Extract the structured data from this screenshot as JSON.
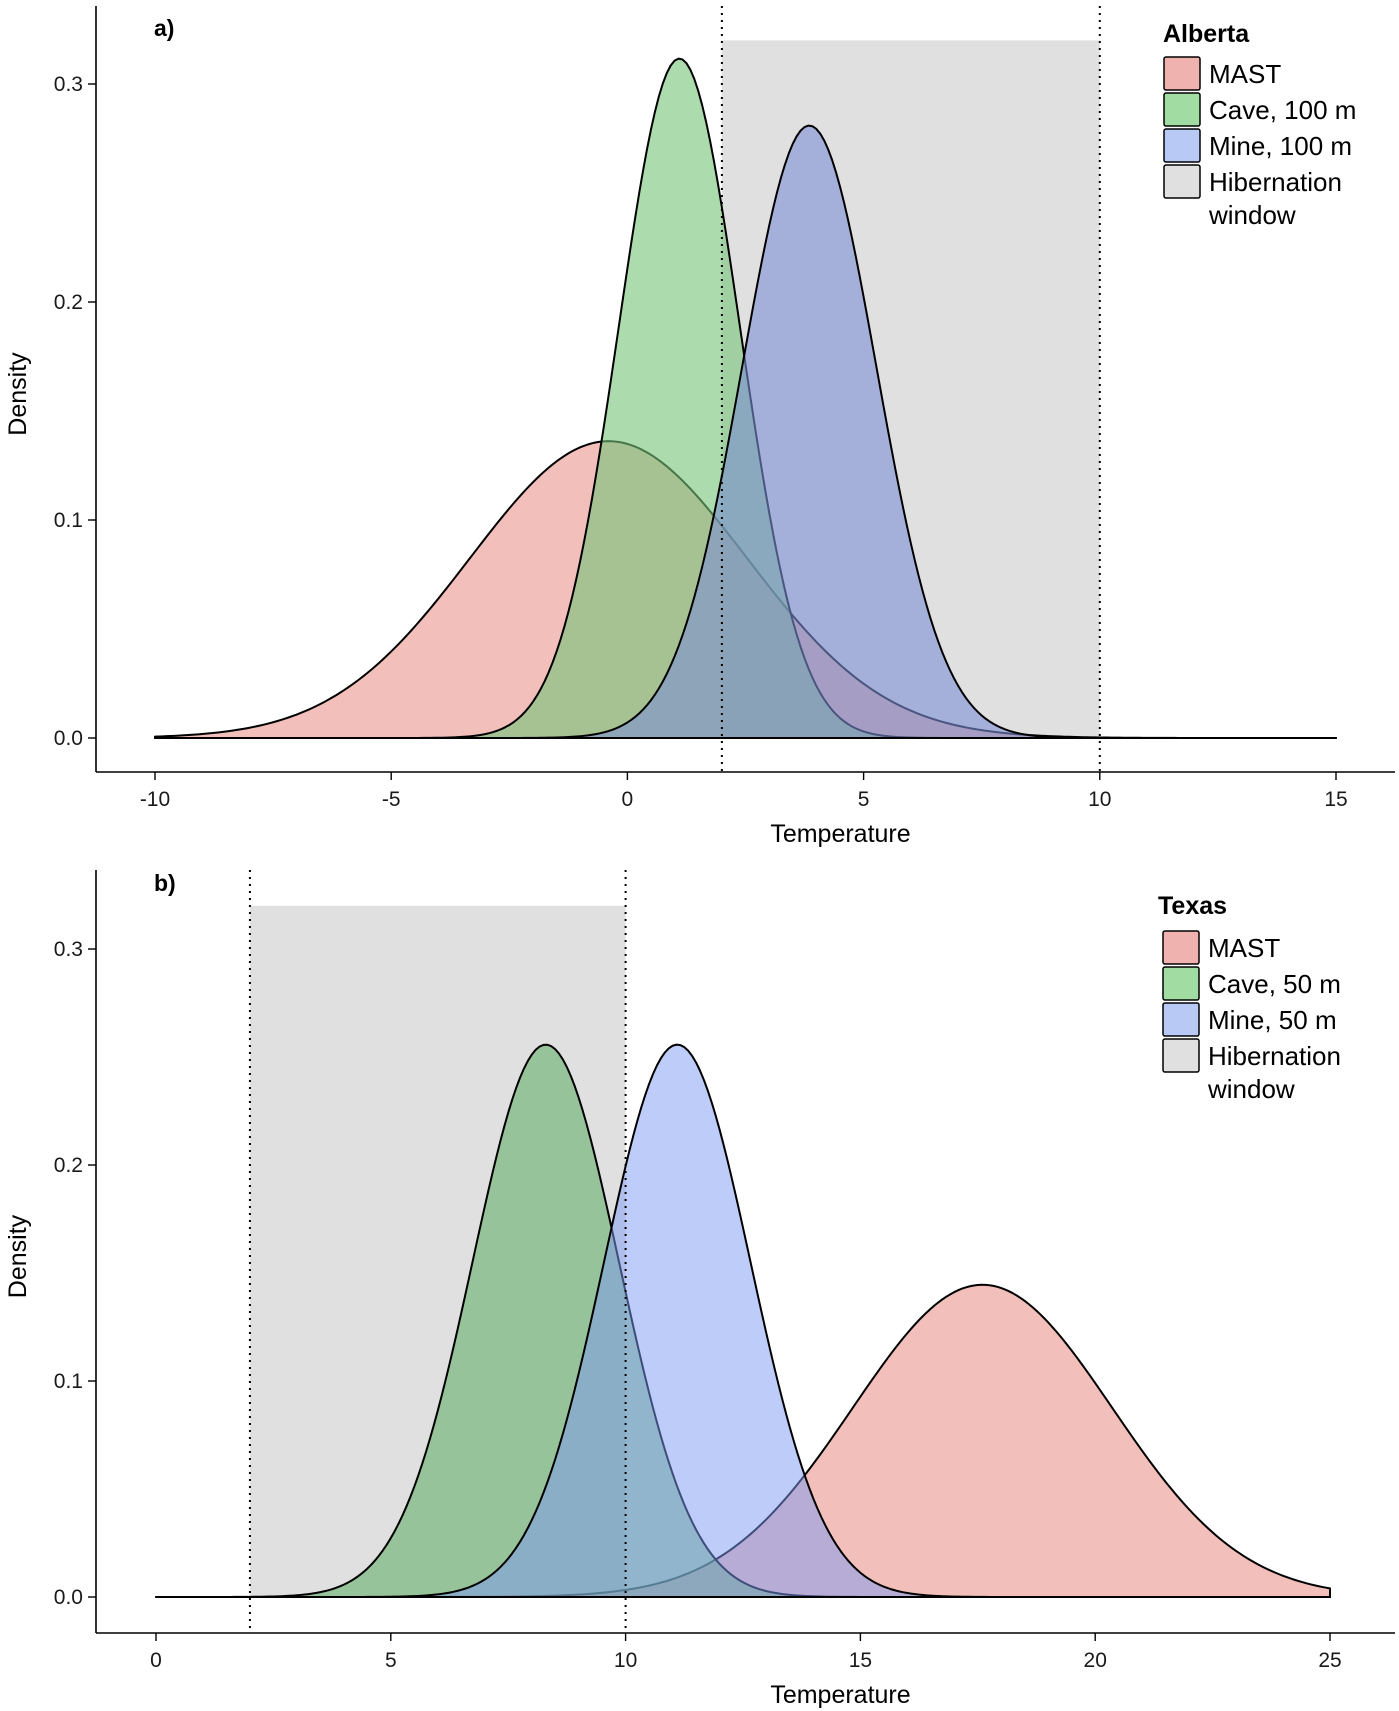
{
  "chart_data": [
    {
      "type": "area",
      "panel_label": "a)",
      "xlabel": "Temperature",
      "ylabel": "Density",
      "xlim": [
        -10,
        15
      ],
      "ylim": [
        0,
        0.32
      ],
      "x_ticks": [
        -10,
        -5,
        0,
        5,
        10,
        15
      ],
      "x_tick_labels": [
        "-10",
        "-5",
        "0",
        "5",
        "10",
        "15"
      ],
      "y_ticks": [
        0.0,
        0.1,
        0.2,
        0.3
      ],
      "y_tick_labels": [
        "0.0",
        "0.1",
        "0.2",
        "0.3"
      ],
      "legend": {
        "title": "Alberta",
        "placement": "top-right",
        "entries": [
          {
            "label": "MAST",
            "color": "#f0b2ae"
          },
          {
            "label": "Cave, 100 m",
            "color": "#a1dca3"
          },
          {
            "label": "Mine, 100 m",
            "color": "#b8c9f6"
          },
          {
            "label": "Hibernation",
            "label_line2": "window",
            "color": "#e0e0e0"
          }
        ]
      },
      "hibernation_window": {
        "xmin": 2,
        "xmax": 10,
        "ymax": 0.32
      },
      "vertical_lines": [
        2,
        10
      ],
      "x_range": [
        -10,
        15
      ],
      "series": [
        {
          "name": "MAST",
          "mean": -0.4,
          "sd": 2.93,
          "color": "#e88a84",
          "opacity": 0.55
        },
        {
          "name": "Cave, 100 m",
          "mean": 1.1,
          "sd": 1.28,
          "color": "#74c476",
          "opacity": 0.6
        },
        {
          "name": "Mine, 100 m",
          "mean": 3.85,
          "sd": 1.42,
          "color": "#7b8fd4",
          "opacity": 0.6
        }
      ]
    },
    {
      "type": "area",
      "panel_label": "b)",
      "xlabel": "Temperature",
      "ylabel": "Density",
      "xlim": [
        0,
        25
      ],
      "ylim": [
        0,
        0.32
      ],
      "x_ticks": [
        0,
        5,
        10,
        15,
        20,
        25
      ],
      "x_tick_labels": [
        "0",
        "5",
        "10",
        "15",
        "20",
        "25"
      ],
      "y_ticks": [
        0.0,
        0.1,
        0.2,
        0.3
      ],
      "y_tick_labels": [
        "0.0",
        "0.1",
        "0.2",
        "0.3"
      ],
      "legend": {
        "title": "Texas",
        "placement": "top-right",
        "entries": [
          {
            "label": "MAST",
            "color": "#f0b2ae"
          },
          {
            "label": "Cave, 50 m",
            "color": "#a1dca3"
          },
          {
            "label": "Mine, 50 m",
            "color": "#b8c9f6"
          },
          {
            "label": "Hibernation",
            "label_line2": "window",
            "color": "#e0e0e0"
          }
        ]
      },
      "hibernation_window": {
        "xmin": 2,
        "xmax": 10,
        "ymax": 0.32
      },
      "vertical_lines": [
        2,
        10
      ],
      "x_range": [
        0,
        25
      ],
      "series": [
        {
          "name": "MAST",
          "mean": 17.6,
          "sd": 2.76,
          "color": "#e88a84",
          "opacity": 0.55
        },
        {
          "name": "Cave, 50 m",
          "mean": 8.3,
          "sd": 1.56,
          "color": "#5aac5e",
          "opacity": 0.55
        },
        {
          "name": "Mine, 50 m",
          "mean": 11.1,
          "sd": 1.56,
          "color": "#7b9af2",
          "opacity": 0.5
        }
      ]
    }
  ]
}
